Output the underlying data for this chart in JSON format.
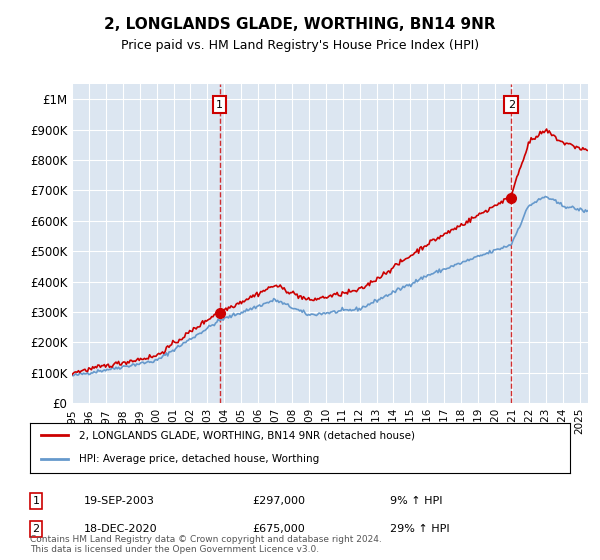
{
  "title": "2, LONGLANDS GLADE, WORTHING, BN14 9NR",
  "subtitle": "Price paid vs. HM Land Registry's House Price Index (HPI)",
  "legend_property": "2, LONGLANDS GLADE, WORTHING, BN14 9NR (detached house)",
  "legend_hpi": "HPI: Average price, detached house, Worthing",
  "footer": "Contains HM Land Registry data © Crown copyright and database right 2024.\nThis data is licensed under the Open Government Licence v3.0.",
  "sale1_date": 2003.72,
  "sale1_price": 297000,
  "sale1_label": "19-SEP-2003",
  "sale1_pct": "9% ↑ HPI",
  "sale2_date": 2020.96,
  "sale2_price": 675000,
  "sale2_label": "18-DEC-2020",
  "sale2_pct": "29% ↑ HPI",
  "xmin": 1995.0,
  "xmax": 2025.5,
  "ymin": 0,
  "ymax": 1050000,
  "bg_color": "#dce6f1",
  "plot_bg": "#dce6f1",
  "red_line": "#cc0000",
  "blue_line": "#6699cc",
  "grid_color": "#ffffff",
  "annotation_box_color": "#cc0000"
}
